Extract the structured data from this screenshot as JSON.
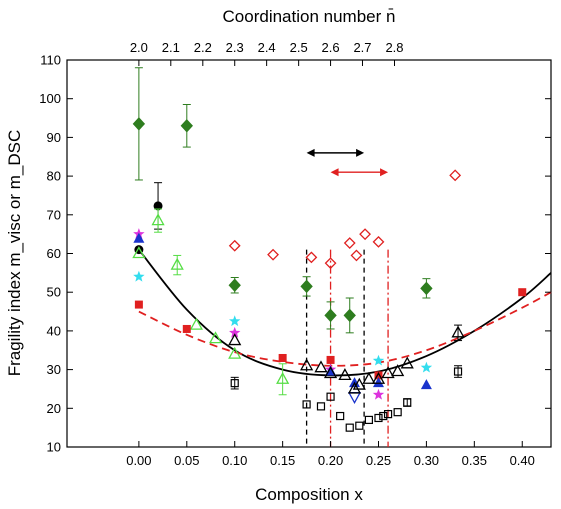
{
  "chart_data": {
    "type": "scatter",
    "xlabel": "Composition x",
    "ylabel": "Fragility index m_visc or m_DSC",
    "top_axis_label": "Coordination number n̄",
    "xlim": [
      -0.075,
      0.43
    ],
    "ylim": [
      10,
      110
    ],
    "x_ticks": [
      0.0,
      0.05,
      0.1,
      0.15,
      0.2,
      0.25,
      0.3,
      0.35,
      0.4
    ],
    "x_tick_labels": [
      "0.00",
      "0.05",
      "0.10",
      "0.15",
      "0.20",
      "0.25",
      "0.30",
      "0.35",
      "0.40"
    ],
    "y_ticks": [
      10,
      20,
      30,
      40,
      50,
      60,
      70,
      80,
      90,
      100,
      110
    ],
    "top_ticks": [
      {
        "x": 0.0,
        "label": "2.0"
      },
      {
        "x": 0.0333,
        "label": "2.1"
      },
      {
        "x": 0.0667,
        "label": "2.2"
      },
      {
        "x": 0.1,
        "label": "2.3"
      },
      {
        "x": 0.1333,
        "label": "2.4"
      },
      {
        "x": 0.1667,
        "label": "2.5"
      },
      {
        "x": 0.2,
        "label": "2.6"
      },
      {
        "x": 0.2333,
        "label": "2.7"
      },
      {
        "x": 0.2667,
        "label": "2.8"
      }
    ],
    "grid": false,
    "series": [
      {
        "marker": "diamond-filled",
        "color": "#2e7d1f",
        "points": [
          {
            "x": 0.0,
            "y": 93.5,
            "err": 14.5
          },
          {
            "x": 0.05,
            "y": 93,
            "err": 5.5
          },
          {
            "x": 0.1,
            "y": 51.8,
            "err": 2
          },
          {
            "x": 0.175,
            "y": 51.5,
            "err": 2.5
          },
          {
            "x": 0.2,
            "y": 44,
            "err": 3.5
          },
          {
            "x": 0.22,
            "y": 44,
            "err": 4.5
          },
          {
            "x": 0.3,
            "y": 51,
            "err": 2.5
          }
        ]
      },
      {
        "marker": "diamond-open",
        "color": "#e02020",
        "points": [
          {
            "x": 0.1,
            "y": 62
          },
          {
            "x": 0.14,
            "y": 59.7
          },
          {
            "x": 0.18,
            "y": 59
          },
          {
            "x": 0.2,
            "y": 57.5
          },
          {
            "x": 0.22,
            "y": 62.7
          },
          {
            "x": 0.227,
            "y": 59.5
          },
          {
            "x": 0.236,
            "y": 65
          },
          {
            "x": 0.25,
            "y": 63
          },
          {
            "x": 0.33,
            "y": 80.2
          }
        ]
      },
      {
        "marker": "circle-filled",
        "color": "#000000",
        "points": [
          {
            "x": 0.0,
            "y": 61,
            "err": 0
          },
          {
            "x": 0.02,
            "y": 72.3,
            "err": 6
          }
        ]
      },
      {
        "marker": "triangle-open",
        "color": "#55dd44",
        "points": [
          {
            "x": 0.0,
            "y": 60
          },
          {
            "x": 0.02,
            "y": 68.5,
            "err": 3
          },
          {
            "x": 0.04,
            "y": 57,
            "err": 2.5
          },
          {
            "x": 0.06,
            "y": 41.5
          },
          {
            "x": 0.08,
            "y": 38
          },
          {
            "x": 0.1,
            "y": 34
          },
          {
            "x": 0.15,
            "y": 27.5,
            "err": 4
          }
        ]
      },
      {
        "marker": "square-filled",
        "color": "#e02020",
        "points": [
          {
            "x": 0.0,
            "y": 46.8
          },
          {
            "x": 0.05,
            "y": 40.5
          },
          {
            "x": 0.15,
            "y": 33
          },
          {
            "x": 0.2,
            "y": 32.5
          },
          {
            "x": 0.25,
            "y": 28.5
          },
          {
            "x": 0.4,
            "y": 50
          }
        ]
      },
      {
        "marker": "star",
        "color": "#33ddee",
        "points": [
          {
            "x": 0.0,
            "y": 54
          },
          {
            "x": 0.1,
            "y": 42.5
          },
          {
            "x": 0.25,
            "y": 32.3
          },
          {
            "x": 0.3,
            "y": 30.5
          }
        ]
      },
      {
        "marker": "star",
        "color": "#dd33dd",
        "points": [
          {
            "x": 0.0,
            "y": 65
          },
          {
            "x": 0.1,
            "y": 39.5
          },
          {
            "x": 0.2,
            "y": 30
          },
          {
            "x": 0.25,
            "y": 23.5
          }
        ]
      },
      {
        "marker": "triangle-filled",
        "color": "#1a33cc",
        "points": [
          {
            "x": 0.0,
            "y": 63.8
          },
          {
            "x": 0.2,
            "y": 29.5
          },
          {
            "x": 0.225,
            "y": 26.5
          },
          {
            "x": 0.25,
            "y": 26.5
          },
          {
            "x": 0.3,
            "y": 26
          }
        ]
      },
      {
        "marker": "triangle-down-open",
        "color": "#1a33cc",
        "points": [
          {
            "x": 0.225,
            "y": 23
          }
        ]
      },
      {
        "marker": "triangle-open",
        "color": "#000000",
        "points": [
          {
            "x": 0.1,
            "y": 37.5
          },
          {
            "x": 0.175,
            "y": 31
          },
          {
            "x": 0.19,
            "y": 30.5
          },
          {
            "x": 0.2,
            "y": 29
          },
          {
            "x": 0.215,
            "y": 28.5
          },
          {
            "x": 0.225,
            "y": 25
          },
          {
            "x": 0.23,
            "y": 26
          },
          {
            "x": 0.24,
            "y": 27.5
          },
          {
            "x": 0.25,
            "y": 27.5
          },
          {
            "x": 0.26,
            "y": 29
          },
          {
            "x": 0.27,
            "y": 29.5
          },
          {
            "x": 0.28,
            "y": 31.5
          },
          {
            "x": 0.333,
            "y": 39.5,
            "err": 2
          }
        ]
      },
      {
        "marker": "square-open",
        "color": "#000000",
        "points": [
          {
            "x": 0.1,
            "y": 26.5,
            "err": 1.5
          },
          {
            "x": 0.175,
            "y": 21
          },
          {
            "x": 0.19,
            "y": 20.5
          },
          {
            "x": 0.2,
            "y": 23
          },
          {
            "x": 0.21,
            "y": 18
          },
          {
            "x": 0.22,
            "y": 15
          },
          {
            "x": 0.23,
            "y": 15.5
          },
          {
            "x": 0.24,
            "y": 17
          },
          {
            "x": 0.25,
            "y": 17.5
          },
          {
            "x": 0.255,
            "y": 18
          },
          {
            "x": 0.26,
            "y": 18.5
          },
          {
            "x": 0.27,
            "y": 19
          },
          {
            "x": 0.28,
            "y": 21.5,
            "err": 1
          },
          {
            "x": 0.333,
            "y": 29.5,
            "err": 1.5
          }
        ]
      }
    ],
    "fits": [
      {
        "style": "solid",
        "color": "#000000",
        "points": [
          {
            "x": 0.0,
            "y": 61
          },
          {
            "x": 0.05,
            "y": 45.5
          },
          {
            "x": 0.1,
            "y": 35
          },
          {
            "x": 0.15,
            "y": 30
          },
          {
            "x": 0.2,
            "y": 28.5
          },
          {
            "x": 0.25,
            "y": 29.5
          },
          {
            "x": 0.3,
            "y": 33.5
          },
          {
            "x": 0.35,
            "y": 40
          },
          {
            "x": 0.4,
            "y": 48.5
          },
          {
            "x": 0.43,
            "y": 55
          }
        ]
      },
      {
        "style": "dashed",
        "color": "#e02020",
        "points": [
          {
            "x": 0.0,
            "y": 45
          },
          {
            "x": 0.05,
            "y": 39
          },
          {
            "x": 0.1,
            "y": 34.5
          },
          {
            "x": 0.15,
            "y": 32
          },
          {
            "x": 0.2,
            "y": 31
          },
          {
            "x": 0.25,
            "y": 31.8
          },
          {
            "x": 0.3,
            "y": 35
          },
          {
            "x": 0.35,
            "y": 40
          },
          {
            "x": 0.4,
            "y": 46
          },
          {
            "x": 0.43,
            "y": 50
          }
        ]
      }
    ],
    "vertical_lines": [
      {
        "x": 0.175,
        "style": "dashed",
        "color": "#000000"
      },
      {
        "x": 0.235,
        "style": "dashed",
        "color": "#000000"
      },
      {
        "x": 0.2,
        "style": "dashdot",
        "color": "#e02020"
      },
      {
        "x": 0.26,
        "style": "dashdot",
        "color": "#e02020"
      }
    ],
    "range_arrows": [
      {
        "x1": 0.175,
        "x2": 0.235,
        "y": 86,
        "color": "#000000"
      },
      {
        "x1": 0.2,
        "x2": 0.26,
        "y": 81,
        "color": "#e02020"
      }
    ]
  }
}
